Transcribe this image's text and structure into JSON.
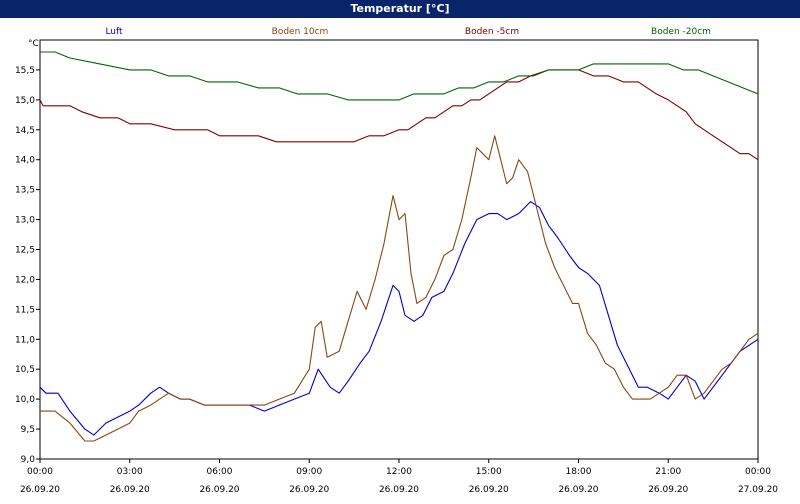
{
  "window": {
    "title": "Temperatur [°C]"
  },
  "chart_data": {
    "type": "line",
    "title": "Temperatur [°C]",
    "ylabel": "°C",
    "ylim": [
      9.0,
      16.0
    ],
    "yticks": [
      "9,0",
      "9,5",
      "10,0",
      "10,5",
      "11,0",
      "11,5",
      "12,0",
      "12,5",
      "13,0",
      "13,5",
      "14,0",
      "14,5",
      "15,0",
      "15,5"
    ],
    "xlim_hours": [
      0,
      24
    ],
    "xticks": [
      {
        "time": "00:00",
        "date": "26.09.20"
      },
      {
        "time": "03:00",
        "date": "26.09.20"
      },
      {
        "time": "06:00",
        "date": "26.09.20"
      },
      {
        "time": "09:00",
        "date": "26.09.20"
      },
      {
        "time": "12:00",
        "date": "26.09.20"
      },
      {
        "time": "15:00",
        "date": "26.09.20"
      },
      {
        "time": "18:00",
        "date": "26.09.20"
      },
      {
        "time": "21:00",
        "date": "26.09.20"
      },
      {
        "time": "00:00",
        "date": "27.09.20"
      }
    ],
    "grid": true,
    "series": [
      {
        "name": "Luft",
        "color": "#0000cc",
        "x": [
          0,
          0.2,
          0.6,
          1,
          1.5,
          1.8,
          2.2,
          2.6,
          3,
          3.3,
          3.7,
          4,
          4.3,
          4.7,
          5,
          5.5,
          6,
          6.5,
          7,
          7.5,
          8,
          8.5,
          9,
          9.3,
          9.7,
          10,
          10.3,
          10.7,
          11,
          11.4,
          11.8,
          12,
          12.2,
          12.5,
          12.8,
          13.1,
          13.5,
          13.8,
          14.2,
          14.6,
          15,
          15.3,
          15.6,
          16,
          16.4,
          16.7,
          17,
          17.3,
          17.7,
          18,
          18.3,
          18.7,
          19,
          19.3,
          19.7,
          20,
          20.3,
          20.7,
          21,
          21.3,
          21.6,
          21.9,
          22.2,
          22.5,
          22.8,
          23.1,
          23.4,
          23.7,
          24
        ],
        "values": [
          10.2,
          10.1,
          10.1,
          9.8,
          9.5,
          9.4,
          9.6,
          9.7,
          9.8,
          9.9,
          10.1,
          10.2,
          10.1,
          10.0,
          10.0,
          9.9,
          9.9,
          9.9,
          9.9,
          9.8,
          9.9,
          10.0,
          10.1,
          10.5,
          10.2,
          10.1,
          10.3,
          10.6,
          10.8,
          11.3,
          11.9,
          11.8,
          11.4,
          11.3,
          11.4,
          11.7,
          11.8,
          12.1,
          12.6,
          13.0,
          13.1,
          13.1,
          13.0,
          13.1,
          13.3,
          13.2,
          12.9,
          12.7,
          12.4,
          12.2,
          12.1,
          11.9,
          11.4,
          10.9,
          10.5,
          10.2,
          10.2,
          10.1,
          10.0,
          10.2,
          10.4,
          10.3,
          10.0,
          10.2,
          10.4,
          10.6,
          10.8,
          10.9,
          11.0
        ]
      },
      {
        "name": "Boden 10cm",
        "color": "#8b4513",
        "x": [
          0,
          0.5,
          1,
          1.5,
          1.8,
          2.2,
          2.6,
          3,
          3.3,
          3.7,
          4,
          4.3,
          4.7,
          5,
          5.5,
          6,
          6.5,
          7,
          7.5,
          8,
          8.5,
          9,
          9.2,
          9.4,
          9.6,
          10,
          10.3,
          10.6,
          10.9,
          11.2,
          11.5,
          11.8,
          12,
          12.2,
          12.4,
          12.6,
          12.9,
          13.2,
          13.5,
          13.8,
          14.1,
          14.4,
          14.6,
          14.8,
          15,
          15.2,
          15.4,
          15.6,
          15.8,
          16,
          16.3,
          16.6,
          16.9,
          17.2,
          17.5,
          17.8,
          18,
          18.3,
          18.6,
          18.9,
          19.2,
          19.5,
          19.8,
          20.1,
          20.4,
          20.7,
          21,
          21.3,
          21.6,
          21.9,
          22.2,
          22.5,
          22.8,
          23.1,
          23.4,
          23.7,
          24
        ],
        "values": [
          9.8,
          9.8,
          9.6,
          9.3,
          9.3,
          9.4,
          9.5,
          9.6,
          9.8,
          9.9,
          10.0,
          10.1,
          10.0,
          10.0,
          9.9,
          9.9,
          9.9,
          9.9,
          9.9,
          10.0,
          10.1,
          10.5,
          11.2,
          11.3,
          10.7,
          10.8,
          11.3,
          11.8,
          11.5,
          12.0,
          12.6,
          13.4,
          13.0,
          13.1,
          12.1,
          11.6,
          11.7,
          12.0,
          12.4,
          12.5,
          13.0,
          13.7,
          14.2,
          14.1,
          14.0,
          14.4,
          14.0,
          13.6,
          13.7,
          14.0,
          13.8,
          13.2,
          12.6,
          12.2,
          11.9,
          11.6,
          11.6,
          11.1,
          10.9,
          10.6,
          10.5,
          10.2,
          10.0,
          10.0,
          10.0,
          10.1,
          10.2,
          10.4,
          10.4,
          10.0,
          10.1,
          10.3,
          10.5,
          10.6,
          10.8,
          11.0,
          11.1
        ]
      },
      {
        "name": "Boden -5cm",
        "color": "#800000",
        "x": [
          0,
          0.1,
          1,
          1.4,
          2,
          2.6,
          3,
          3.7,
          4.5,
          5,
          5.6,
          6,
          6.6,
          7.3,
          7.9,
          8.5,
          9,
          9.6,
          10,
          10.5,
          11,
          11.5,
          12,
          12.3,
          12.6,
          12.9,
          13.2,
          13.5,
          13.8,
          14.1,
          14.4,
          14.7,
          15,
          15.3,
          15.6,
          16,
          16.4,
          17,
          17.5,
          18,
          18.5,
          19,
          19.5,
          20,
          20.3,
          20.6,
          21,
          21.3,
          21.6,
          21.9,
          22.2,
          22.5,
          22.8,
          23.1,
          23.4,
          23.7,
          24
        ],
        "values": [
          15.0,
          14.9,
          14.9,
          14.8,
          14.7,
          14.7,
          14.6,
          14.6,
          14.5,
          14.5,
          14.5,
          14.4,
          14.4,
          14.4,
          14.3,
          14.3,
          14.3,
          14.3,
          14.3,
          14.3,
          14.4,
          14.4,
          14.5,
          14.5,
          14.6,
          14.7,
          14.7,
          14.8,
          14.9,
          14.9,
          15.0,
          15.0,
          15.1,
          15.2,
          15.3,
          15.3,
          15.4,
          15.5,
          15.5,
          15.5,
          15.4,
          15.4,
          15.3,
          15.3,
          15.2,
          15.1,
          15.0,
          14.9,
          14.8,
          14.6,
          14.5,
          14.4,
          14.3,
          14.2,
          14.1,
          14.1,
          14.0
        ]
      },
      {
        "name": "Boden -20cm",
        "color": "#006400",
        "x": [
          0,
          0.5,
          1,
          2,
          3,
          3.7,
          4.3,
          5,
          5.6,
          6,
          6.6,
          7.3,
          8,
          8.6,
          9,
          9.6,
          10.3,
          11,
          11.6,
          12,
          12.5,
          13,
          13.5,
          14,
          14.5,
          15,
          15.5,
          16,
          16.5,
          17,
          17.5,
          18,
          18.5,
          19,
          19.5,
          20,
          20.5,
          21,
          21.5,
          22,
          22.5,
          23,
          23.5,
          24
        ],
        "values": [
          15.8,
          15.8,
          15.7,
          15.6,
          15.5,
          15.5,
          15.4,
          15.4,
          15.3,
          15.3,
          15.3,
          15.2,
          15.2,
          15.1,
          15.1,
          15.1,
          15.0,
          15.0,
          15.0,
          15.0,
          15.1,
          15.1,
          15.1,
          15.2,
          15.2,
          15.3,
          15.3,
          15.4,
          15.4,
          15.5,
          15.5,
          15.5,
          15.6,
          15.6,
          15.6,
          15.6,
          15.6,
          15.6,
          15.5,
          15.5,
          15.4,
          15.3,
          15.2,
          15.1
        ]
      }
    ]
  }
}
